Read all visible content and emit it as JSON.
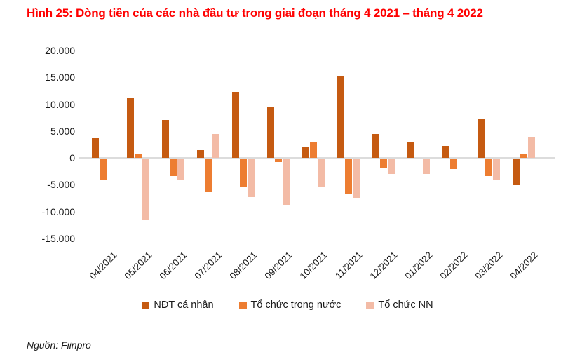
{
  "title": "Hình 25: Dòng tiền của các nhà đầu tư trong giai đoạn tháng 4 2021 – tháng 4 2022",
  "source": "Nguồn: Fiinpro",
  "colors": {
    "title_red": "#ff0000",
    "series_dark_orange": "#c55a11",
    "series_orange": "#ed7d31",
    "series_pink": "#f3bba6",
    "zero_line_gray": "#dcdcdc"
  },
  "chart_data": {
    "type": "bar",
    "title": "Hình 25: Dòng tiền của các nhà đầu tư trong giai đoạn tháng 4 2021 – tháng 4 2022",
    "categories": [
      "04/2021",
      "05/2021",
      "06/2021",
      "07/2021",
      "08/2021",
      "09/2021",
      "10/2021",
      "11/2021",
      "12/2021",
      "01/2022",
      "02/2022",
      "03/2022",
      "04/2022"
    ],
    "series": [
      {
        "name": "NĐT cá nhân",
        "color": "#c55a11",
        "values": [
          3700,
          11100,
          7100,
          1500,
          12300,
          9500,
          2100,
          15200,
          4500,
          3000,
          2200,
          7200,
          -4900
        ]
      },
      {
        "name": "Tổ chức trong nước",
        "color": "#ed7d31",
        "values": [
          -3900,
          700,
          -3300,
          -6300,
          -5300,
          -600,
          3000,
          -6600,
          -1700,
          0,
          -2000,
          -3300,
          800
        ]
      },
      {
        "name": "Tổ chức NN",
        "color": "#f3bba6",
        "values": [
          0,
          -11500,
          -4000,
          4400,
          -7100,
          -8700,
          -5300,
          -7300,
          -2900,
          -2900,
          0,
          -4000,
          3900
        ]
      }
    ],
    "xlabel": "",
    "ylabel": "",
    "ylim": [
      -15000,
      20000
    ],
    "ytick_step": 5000,
    "ytick_labels": [
      "20.000",
      "15.000",
      "10.000",
      "5.000",
      "0",
      "-5.000",
      "-10.000",
      "-15.000"
    ],
    "grid": false,
    "legend_position": "bottom"
  }
}
